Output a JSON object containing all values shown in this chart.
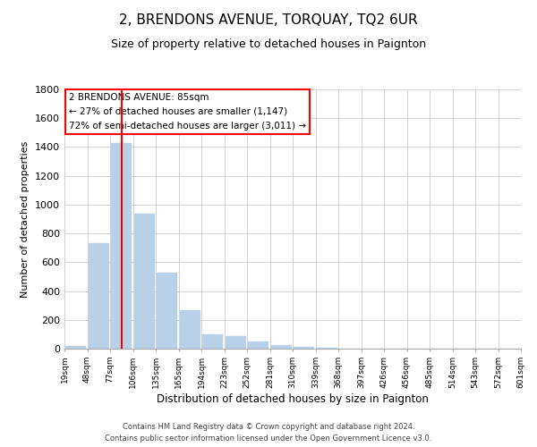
{
  "title": "2, BRENDONS AVENUE, TORQUAY, TQ2 6UR",
  "subtitle": "Size of property relative to detached houses in Paignton",
  "xlabel": "Distribution of detached houses by size in Paignton",
  "ylabel": "Number of detached properties",
  "bar_values": [
    20,
    730,
    1430,
    935,
    530,
    270,
    100,
    90,
    50,
    25,
    15,
    5,
    0,
    0,
    0,
    0,
    0,
    0,
    0,
    0
  ],
  "categories": [
    "19sqm",
    "48sqm",
    "77sqm",
    "106sqm",
    "135sqm",
    "165sqm",
    "194sqm",
    "223sqm",
    "252sqm",
    "281sqm",
    "310sqm",
    "339sqm",
    "368sqm",
    "397sqm",
    "426sqm",
    "456sqm",
    "485sqm",
    "514sqm",
    "543sqm",
    "572sqm",
    "601sqm"
  ],
  "bar_color": "#b8d0e8",
  "bar_edge_color": "#b8d0e8",
  "red_line_x": 2,
  "ylim": [
    0,
    1800
  ],
  "yticks": [
    0,
    200,
    400,
    600,
    800,
    1000,
    1200,
    1400,
    1600,
    1800
  ],
  "annotation_line1": "2 BRENDONS AVENUE: 85sqm",
  "annotation_line2": "← 27% of detached houses are smaller (1,147)",
  "annotation_line3": "72% of semi-detached houses are larger (3,011) →",
  "footer_line1": "Contains HM Land Registry data © Crown copyright and database right 2024.",
  "footer_line2": "Contains public sector information licensed under the Open Government Licence v3.0.",
  "background_color": "#ffffff",
  "grid_color": "#cccccc",
  "title_fontsize": 11,
  "subtitle_fontsize": 9
}
